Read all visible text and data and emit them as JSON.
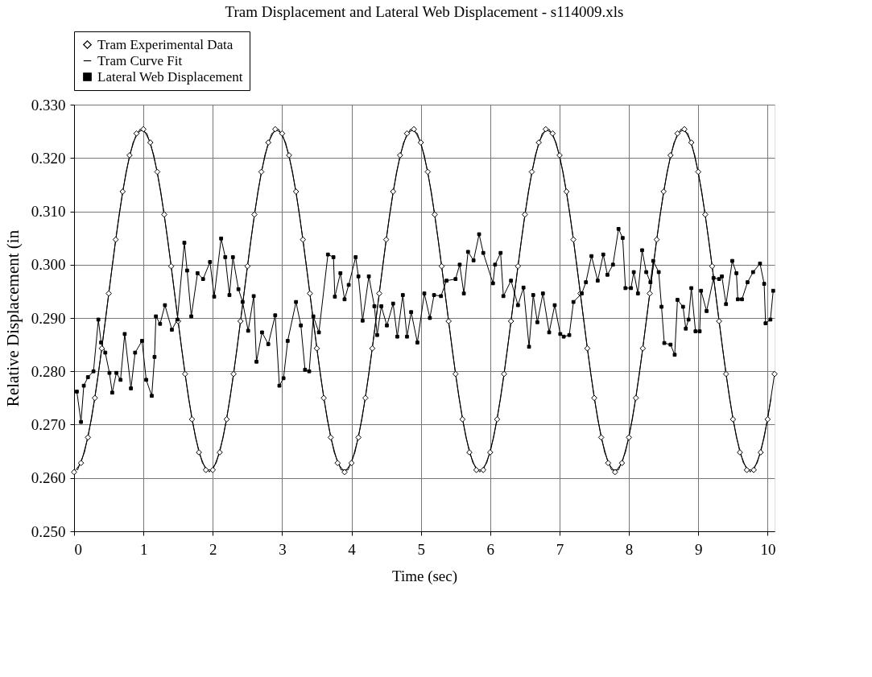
{
  "chart_data": {
    "type": "line",
    "title": "Tram Displacement and Lateral Web Displacement - s114009.xls",
    "xlabel": "Time (sec)",
    "ylabel": "Relative Displacement (in",
    "xlim": [
      0,
      10.1
    ],
    "ylim": [
      0.25,
      0.33
    ],
    "xticks": [
      0,
      1,
      2,
      3,
      4,
      5,
      6,
      7,
      8,
      9,
      10
    ],
    "yticks": [
      {
        "value": 0.25,
        "label": "0.250"
      },
      {
        "value": 0.26,
        "label": "0.260"
      },
      {
        "value": 0.27,
        "label": "0.270"
      },
      {
        "value": 0.28,
        "label": "0.280"
      },
      {
        "value": 0.29,
        "label": "0.290"
      },
      {
        "value": 0.3,
        "label": "0.300"
      },
      {
        "value": 0.31,
        "label": "0.310"
      },
      {
        "value": 0.32,
        "label": "0.320"
      },
      {
        "value": 0.33,
        "label": "0.330"
      }
    ],
    "grid": true,
    "legend": "top",
    "line_style": "solid",
    "x": [
      0,
      0.1,
      0.2,
      0.3,
      0.4,
      0.5,
      0.6,
      0.7,
      0.8,
      0.9,
      1,
      1.1,
      1.2,
      1.3,
      1.4,
      1.5,
      1.6,
      1.7,
      1.8,
      1.9,
      2,
      2.1,
      2.2,
      2.3,
      2.4,
      2.5,
      2.6,
      2.7,
      2.8,
      2.9,
      3,
      3.1,
      3.2,
      3.3,
      3.4,
      3.5,
      3.6,
      3.7,
      3.8,
      3.9,
      4,
      4.1,
      4.2,
      4.3,
      4.4,
      4.5,
      4.6,
      4.7,
      4.8,
      4.9,
      5,
      5.1,
      5.2,
      5.3,
      5.4,
      5.5,
      5.6,
      5.7,
      5.8,
      5.9,
      6,
      6.1,
      6.2,
      6.3,
      6.4,
      6.5,
      6.6,
      6.7,
      6.8,
      6.9,
      7,
      7.1,
      7.2,
      7.3,
      7.4,
      7.5,
      7.6,
      7.7,
      7.8,
      7.9,
      8,
      8.1,
      8.2,
      8.3,
      8.4,
      8.5,
      8.6,
      8.7,
      8.8,
      8.9,
      9,
      9.1,
      9.2,
      9.3,
      9.4,
      9.5,
      9.6,
      9.7,
      9.8,
      9.9,
      10,
      10.1
    ],
    "series": [
      {
        "name": "Tram Experimental Data",
        "color": "#000000",
        "marker": "diamond",
        "values": [
          0.2611,
          0.2628,
          0.2676,
          0.275,
          0.2843,
          0.2946,
          0.3047,
          0.3137,
          0.3205,
          0.3246,
          0.3254,
          0.3229,
          0.3174,
          0.3094,
          0.2997,
          0.2894,
          0.2795,
          0.271,
          0.2648,
          0.2615,
          0.2615,
          0.2648,
          0.271,
          0.2795,
          0.2894,
          0.2997,
          0.3094,
          0.3174,
          0.3229,
          0.3254,
          0.3246,
          0.3205,
          0.3137,
          0.3047,
          0.2946,
          0.2843,
          0.275,
          0.2676,
          0.2628,
          0.2611,
          0.2628,
          0.2676,
          0.275,
          0.2843,
          0.2946,
          0.3047,
          0.3137,
          0.3205,
          0.3246,
          0.3254,
          0.3229,
          0.3174,
          0.3094,
          0.2997,
          0.2894,
          0.2795,
          0.271,
          0.2648,
          0.2615,
          0.2615,
          0.2648,
          0.271,
          0.2795,
          0.2894,
          0.2997,
          0.3094,
          0.3174,
          0.3229,
          0.3254,
          0.3246,
          0.3205,
          0.3137,
          0.3047,
          0.2946,
          0.2843,
          0.275,
          0.2676,
          0.2628,
          0.2611,
          0.2628,
          0.2676,
          0.275,
          0.2843,
          0.2946,
          0.3047,
          0.3137,
          0.3205,
          0.3246,
          0.3254,
          0.3229,
          0.3174,
          0.3094,
          0.2997,
          0.2894,
          0.2795,
          0.271,
          0.2648,
          0.2615,
          0.2615,
          0.2648,
          0.271,
          0.2795
        ]
      },
      {
        "name": "Tram Curve Fit",
        "color": "#000000",
        "marker": "none",
        "x": [
          0.05,
          0.15,
          0.25,
          0.35,
          0.45,
          0.55,
          0.65,
          0.75,
          0.85,
          0.95,
          1.05,
          1.15,
          1.25,
          1.35,
          1.45,
          1.55,
          1.65,
          1.75,
          1.85,
          1.95,
          2.05,
          2.15,
          2.25,
          2.35,
          2.45,
          2.55,
          2.65,
          2.75,
          2.85,
          2.95,
          3.05,
          3.15,
          3.25,
          3.35,
          3.45,
          3.55,
          3.65,
          3.75,
          3.85,
          3.95,
          4.05,
          4.15,
          4.25,
          4.35,
          4.45,
          4.55,
          4.65,
          4.75,
          4.85,
          4.95,
          5.05,
          5.15,
          5.25,
          5.35,
          5.45,
          5.55,
          5.65,
          5.75,
          5.85,
          5.95,
          6.05,
          6.15,
          6.25,
          6.35,
          6.45,
          6.55,
          6.65,
          6.75,
          6.85,
          6.95,
          7.05,
          7.15,
          7.25,
          7.35,
          7.45,
          7.55,
          7.65,
          7.75,
          7.85,
          7.95,
          8.05,
          8.15,
          8.25,
          8.35,
          8.45,
          8.55,
          8.65,
          8.75,
          8.85,
          8.95,
          9.05,
          9.15,
          9.25,
          9.35,
          9.45,
          9.55,
          9.65,
          9.75,
          9.85,
          9.95,
          10.05
        ],
        "values": [
          0.2615,
          0.2648,
          0.271,
          0.2795,
          0.2894,
          0.2997,
          0.3094,
          0.3174,
          0.3229,
          0.3254,
          0.3246,
          0.3205,
          0.3137,
          0.3047,
          0.2946,
          0.2843,
          0.275,
          0.2676,
          0.2628,
          0.2611,
          0.2628,
          0.2676,
          0.275,
          0.2843,
          0.2946,
          0.3047,
          0.3137,
          0.3205,
          0.3246,
          0.3254,
          0.3229,
          0.3174,
          0.3094,
          0.2997,
          0.2894,
          0.2795,
          0.271,
          0.2648,
          0.2615,
          0.2615,
          0.2648,
          0.271,
          0.2795,
          0.2894,
          0.2997,
          0.3094,
          0.3174,
          0.3229,
          0.3254,
          0.3246,
          0.3205,
          0.3137,
          0.3047,
          0.2946,
          0.2843,
          0.275,
          0.2676,
          0.2628,
          0.2611,
          0.2628,
          0.2676,
          0.275,
          0.2843,
          0.2946,
          0.3047,
          0.3137,
          0.3205,
          0.3246,
          0.3254,
          0.3229,
          0.3174,
          0.3094,
          0.2997,
          0.2894,
          0.2795,
          0.271,
          0.2648,
          0.2615,
          0.2615,
          0.2648,
          0.271,
          0.2795,
          0.2894,
          0.2997,
          0.3094,
          0.3174,
          0.3229,
          0.3254,
          0.3246,
          0.3205,
          0.3137,
          0.3047,
          0.2946,
          0.2843,
          0.275,
          0.2676,
          0.2628,
          0.2611,
          0.2628,
          0.2676,
          0.275
        ]
      },
      {
        "name": "Lateral Web Displacement",
        "color": "#000000",
        "marker": "square",
        "x": [
          0.04,
          0.1,
          0.14,
          0.2,
          0.28,
          0.35,
          0.39,
          0.45,
          0.51,
          0.55,
          0.61,
          0.67,
          0.73,
          0.82,
          0.88,
          0.98,
          1.04,
          1.12,
          1.16,
          1.18,
          1.24,
          1.31,
          1.41,
          1.49,
          1.59,
          1.63,
          1.69,
          1.78,
          1.86,
          1.96,
          2.02,
          2.12,
          2.18,
          2.24,
          2.29,
          2.37,
          2.43,
          2.51,
          2.59,
          2.63,
          2.71,
          2.8,
          2.9,
          2.96,
          3.02,
          3.08,
          3.2,
          3.27,
          3.33,
          3.39,
          3.45,
          3.53,
          3.66,
          3.74,
          3.76,
          3.84,
          3.9,
          3.96,
          4.06,
          4.1,
          4.16,
          4.25,
          4.33,
          4.37,
          4.43,
          4.51,
          4.6,
          4.66,
          4.74,
          4.8,
          4.86,
          4.95,
          5.05,
          5.13,
          5.19,
          5.29,
          5.37,
          5.5,
          5.56,
          5.62,
          5.68,
          5.76,
          5.84,
          5.9,
          6.04,
          6.07,
          6.15,
          6.19,
          6.3,
          6.4,
          6.48,
          6.56,
          6.62,
          6.68,
          6.76,
          6.85,
          6.93,
          7.01,
          7.06,
          7.14,
          7.2,
          7.32,
          7.38,
          7.46,
          7.55,
          7.63,
          7.69,
          7.77,
          7.85,
          7.91,
          7.95,
          8.03,
          8.07,
          8.13,
          8.19,
          8.25,
          8.31,
          8.35,
          8.43,
          8.47,
          8.51,
          8.6,
          8.66,
          8.7,
          8.78,
          8.82,
          8.86,
          8.9,
          8.96,
          9.02,
          9.04,
          9.12,
          9.22,
          9.3,
          9.34,
          9.4,
          9.49,
          9.55,
          9.57,
          9.63,
          9.71,
          9.79,
          9.89,
          9.95,
          9.97,
          10.04,
          10.08
        ],
        "values": [
          0.2762,
          0.2705,
          0.2773,
          0.2789,
          0.28,
          0.2897,
          0.2854,
          0.2835,
          0.2797,
          0.276,
          0.2797,
          0.2784,
          0.287,
          0.2768,
          0.2835,
          0.2857,
          0.2784,
          0.2754,
          0.2827,
          0.2903,
          0.2889,
          0.2924,
          0.2878,
          0.2897,
          0.3041,
          0.2989,
          0.2903,
          0.2984,
          0.2973,
          0.3005,
          0.294,
          0.3049,
          0.3014,
          0.2943,
          0.3014,
          0.2954,
          0.293,
          0.2876,
          0.2941,
          0.2818,
          0.2873,
          0.2851,
          0.2905,
          0.2773,
          0.2787,
          0.2857,
          0.293,
          0.2886,
          0.2803,
          0.28,
          0.2903,
          0.2873,
          0.3019,
          0.3014,
          0.294,
          0.2984,
          0.2935,
          0.2962,
          0.3014,
          0.2978,
          0.2895,
          0.2978,
          0.2922,
          0.2868,
          0.2922,
          0.2886,
          0.2927,
          0.2865,
          0.2943,
          0.2865,
          0.2911,
          0.2854,
          0.2946,
          0.29,
          0.2943,
          0.2941,
          0.297,
          0.2973,
          0.3,
          0.2946,
          0.3024,
          0.3008,
          0.3057,
          0.3022,
          0.2965,
          0.3,
          0.3022,
          0.2941,
          0.297,
          0.2924,
          0.2957,
          0.2846,
          0.2943,
          0.2892,
          0.2946,
          0.2873,
          0.2924,
          0.287,
          0.2865,
          0.2868,
          0.293,
          0.2946,
          0.2967,
          0.3016,
          0.297,
          0.3019,
          0.2981,
          0.3,
          0.3067,
          0.305,
          0.2956,
          0.2956,
          0.2986,
          0.2946,
          0.3027,
          0.2986,
          0.2967,
          0.3007,
          0.2986,
          0.2921,
          0.2853,
          0.285,
          0.2831,
          0.2934,
          0.2921,
          0.288,
          0.2897,
          0.2956,
          0.2875,
          0.2875,
          0.2951,
          0.2913,
          0.2975,
          0.2973,
          0.2978,
          0.2926,
          0.3007,
          0.2984,
          0.2935,
          0.2935,
          0.2967,
          0.2986,
          0.3002,
          0.2964,
          0.289,
          0.2897,
          0.2951
        ]
      }
    ]
  }
}
